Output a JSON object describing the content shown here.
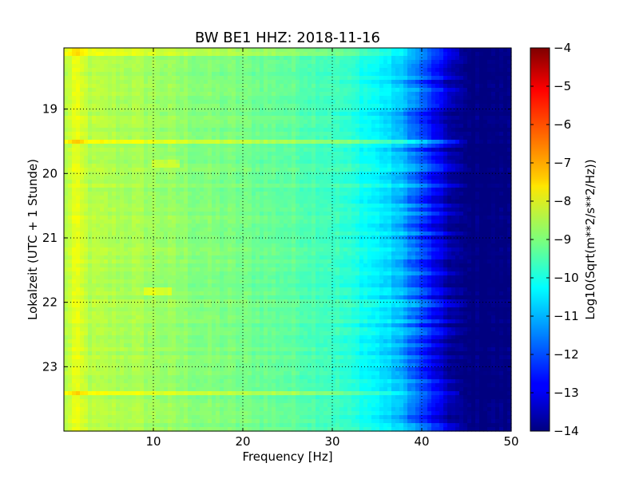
{
  "chart_data": {
    "type": "heatmap",
    "title": "BW BE1 HHZ: 2018-11-16",
    "xlabel": "Frequency [Hz]",
    "ylabel": "Lokalzeit (UTC + 1 Stunde)",
    "colorbar_label": "Log10(Sqrt(m**2/s**2/Hz))",
    "xlim": [
      0,
      50
    ],
    "ylim": [
      24,
      18.05
    ],
    "x_ticks": [
      10,
      20,
      30,
      40,
      50
    ],
    "y_ticks": [
      19,
      20,
      21,
      22,
      23
    ],
    "color_range": [
      -14,
      -4
    ],
    "colorbar_ticks": [
      -4,
      -5,
      -6,
      -7,
      -8,
      -9,
      -10,
      -11,
      -12,
      -13,
      -14
    ],
    "colormap": "jet",
    "grid": true,
    "spectrum_profile": [
      {
        "freq": 0,
        "value": -8.6
      },
      {
        "freq": 1.2,
        "value": -8.0
      },
      {
        "freq": 3,
        "value": -8.5
      },
      {
        "freq": 8,
        "value": -8.6
      },
      {
        "freq": 15,
        "value": -8.95
      },
      {
        "freq": 20,
        "value": -9.1
      },
      {
        "freq": 25,
        "value": -9.3
      },
      {
        "freq": 30,
        "value": -9.6
      },
      {
        "freq": 33,
        "value": -10.0
      },
      {
        "freq": 36,
        "value": -10.5
      },
      {
        "freq": 38,
        "value": -11.0
      },
      {
        "freq": 40,
        "value": -12.0
      },
      {
        "freq": 42,
        "value": -13.0
      },
      {
        "freq": 43.5,
        "value": -13.7
      },
      {
        "freq": 45,
        "value": -14.0
      },
      {
        "freq": 50,
        "value": -14.0
      }
    ],
    "bright_events": [
      {
        "time": 18.12,
        "value_offset": 0.5
      },
      {
        "time": 19.5,
        "value_offset": 0.6
      },
      {
        "time": 23.42,
        "value_offset": 0.7
      }
    ],
    "spot_events": [
      {
        "time": 19.83,
        "freq": 11.5,
        "value_offset": 0.5
      },
      {
        "time": 21.83,
        "freq": 10.5,
        "value_offset": 0.6
      }
    ]
  }
}
